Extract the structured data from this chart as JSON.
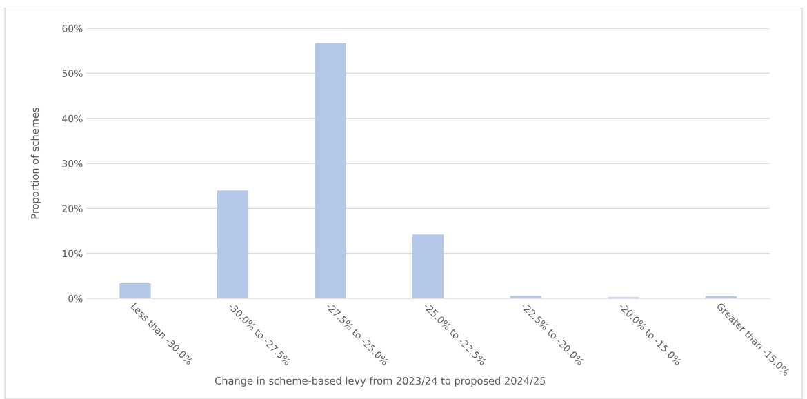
{
  "chart_data": {
    "type": "bar",
    "xlabel": "Change in scheme-based levy from 2023/24 to proposed 2024/25",
    "ylabel": "Proportion of schemes",
    "categories": [
      "Less than -30.0%",
      "-30.0% to -27.5%",
      "-27.5% to -25.0%",
      "-25.0% to -22.5%",
      "-22.5% to -20.0%",
      "-20.0% to -15.0%",
      "Greater than -15.0%"
    ],
    "values": [
      3.4,
      24.0,
      56.7,
      14.2,
      0.6,
      0.3,
      0.5
    ],
    "color": "#b4c7e7",
    "ylim": [
      0,
      60
    ],
    "yticks": [
      {
        "value": 0,
        "label": "0%"
      },
      {
        "value": 10,
        "label": "10%"
      },
      {
        "value": 20,
        "label": "20%"
      },
      {
        "value": 30,
        "label": "30%"
      },
      {
        "value": 40,
        "label": "40%"
      },
      {
        "value": 50,
        "label": "50%"
      },
      {
        "value": 60,
        "label": "60%"
      }
    ],
    "grid": "y"
  }
}
